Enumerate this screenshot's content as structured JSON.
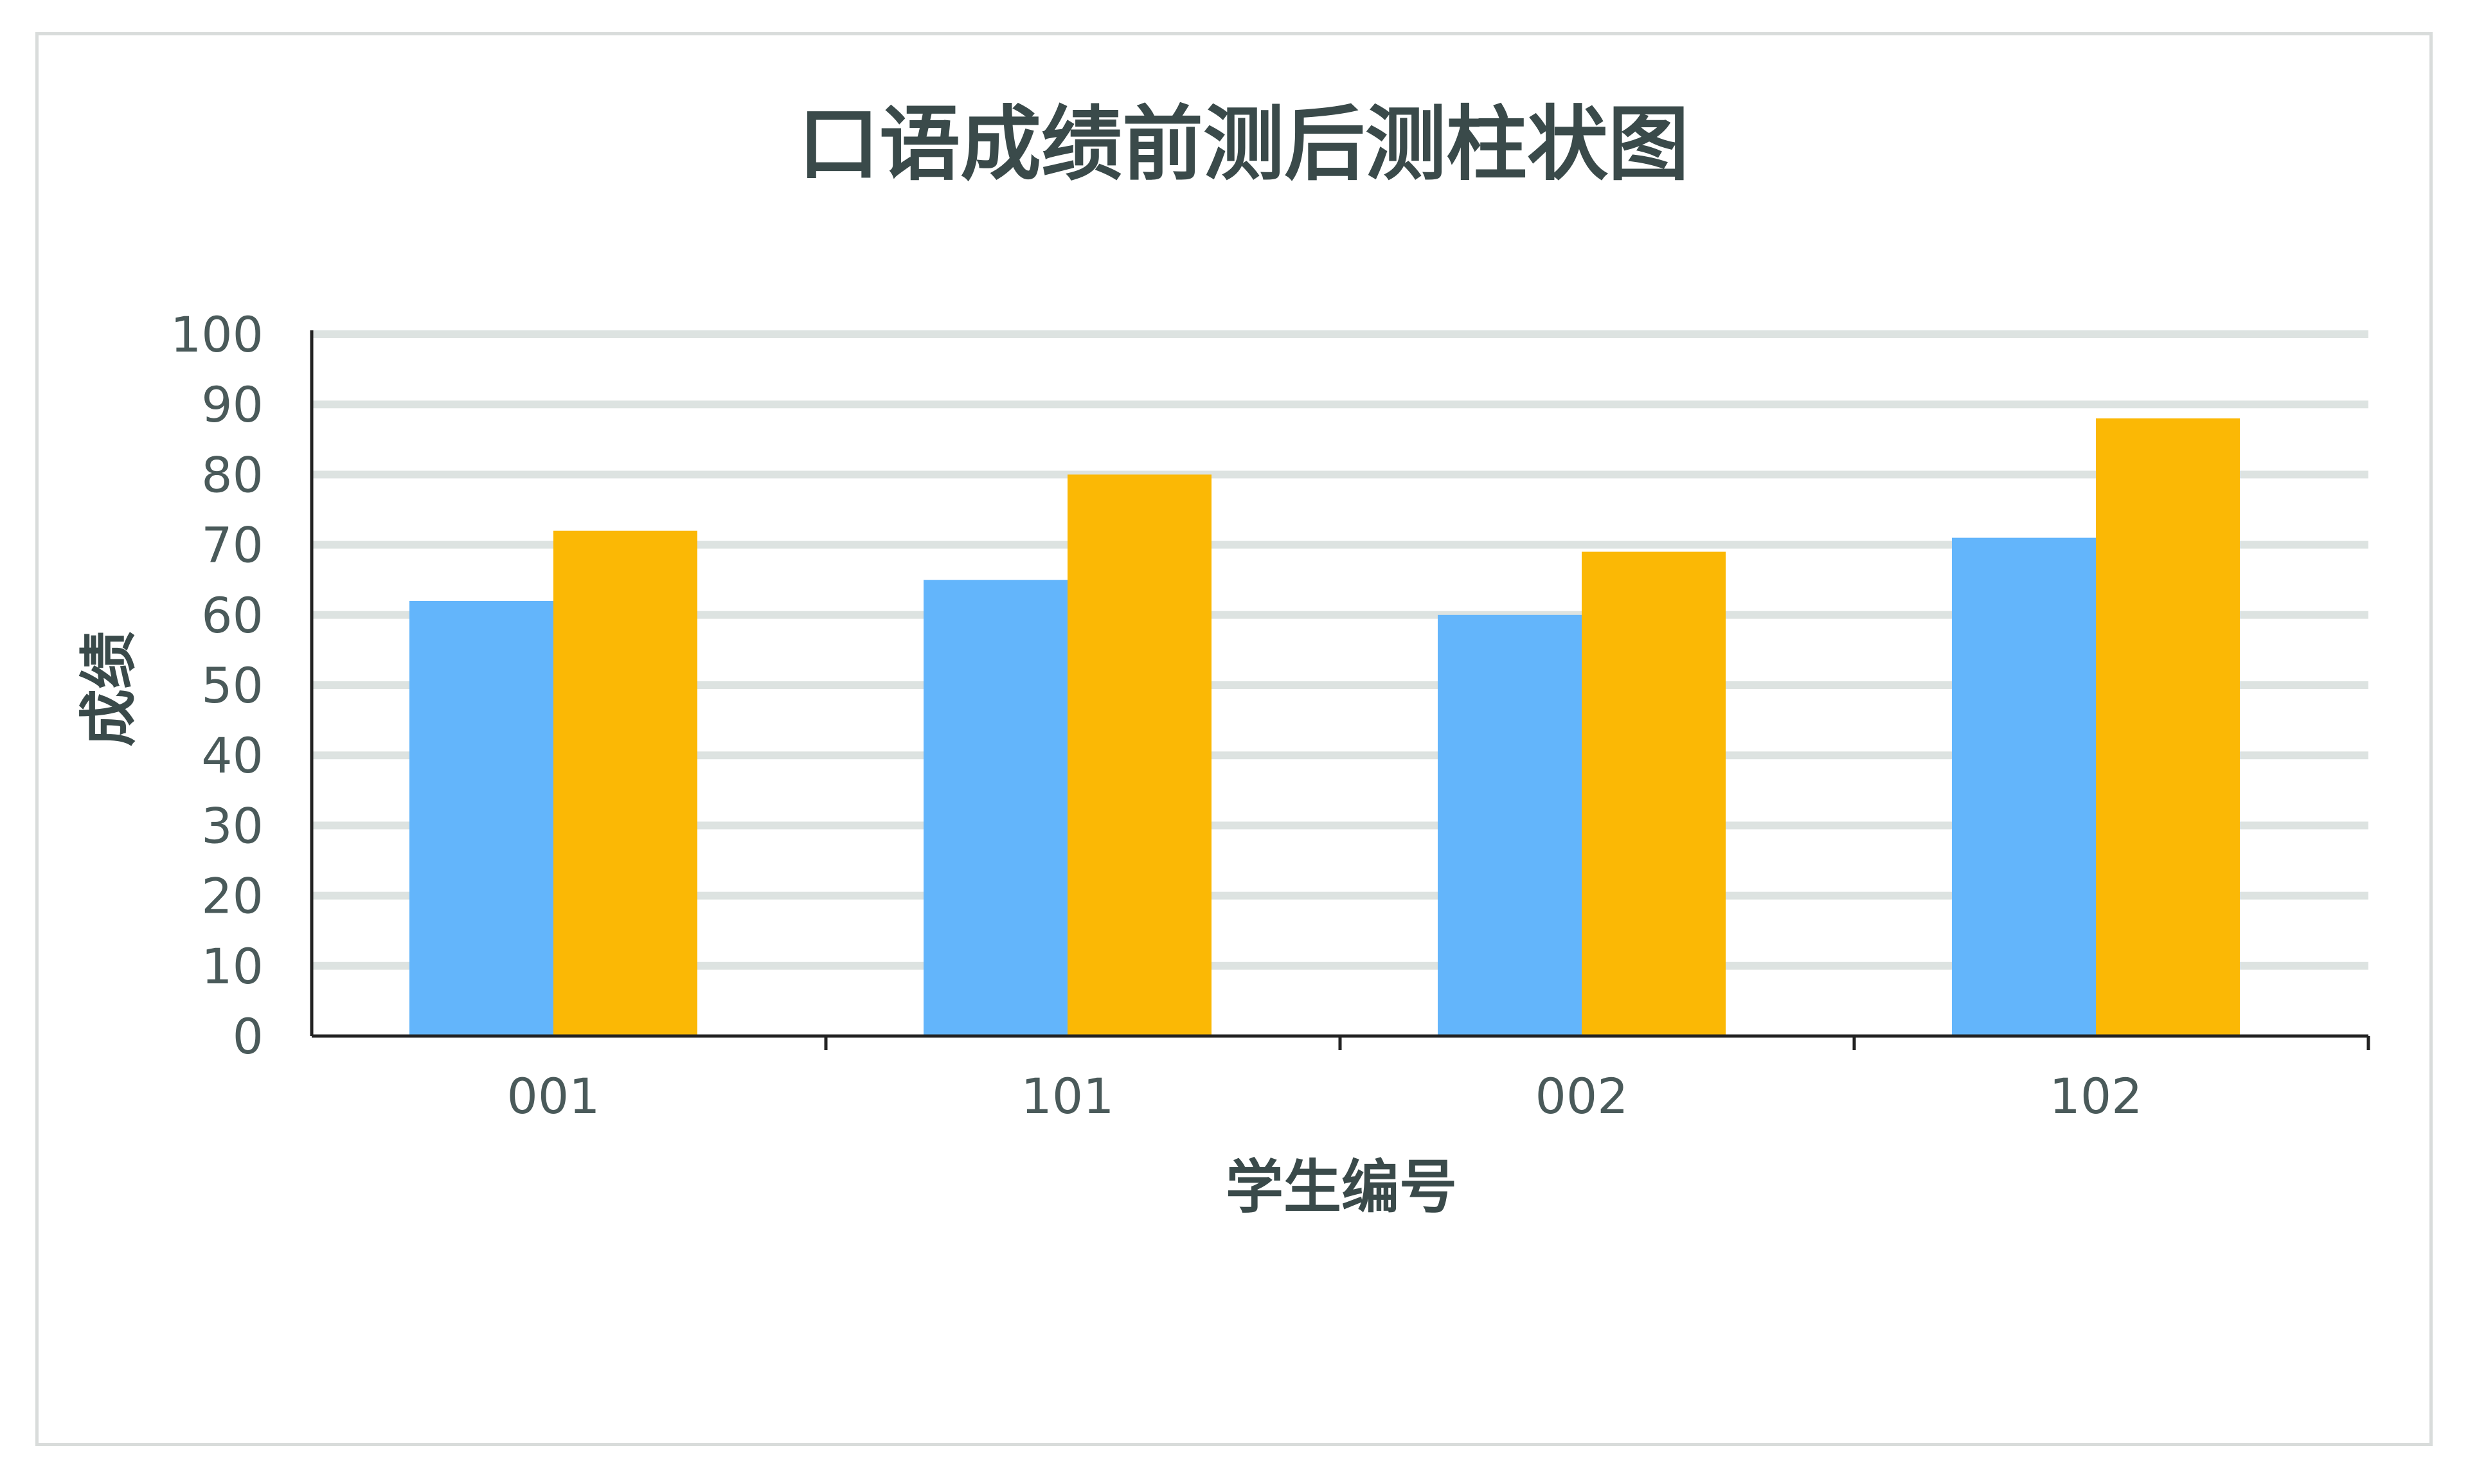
{
  "chart_data": {
    "type": "bar",
    "title": "口语成绩前测后测柱状图",
    "xlabel": "学生编号",
    "ylabel": "成绩",
    "categories": [
      "001",
      "101",
      "002",
      "102"
    ],
    "series": [
      {
        "values": [
          62,
          65,
          60,
          71
        ],
        "color": "#63b5fb"
      },
      {
        "values": [
          72,
          80,
          69,
          88
        ],
        "color": "#fbb805"
      }
    ],
    "ylim": [
      0,
      100
    ],
    "yticks": [
      0,
      10,
      20,
      30,
      40,
      50,
      60,
      70,
      80,
      90,
      100
    ],
    "grid": true,
    "legend": "none"
  }
}
